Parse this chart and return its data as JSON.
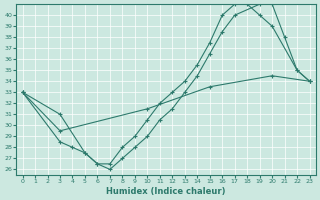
{
  "xlabel": "Humidex (Indice chaleur)",
  "bg_color": "#cce8e0",
  "line_color": "#2d7a6c",
  "xlim": [
    -0.5,
    23.5
  ],
  "ylim": [
    25.5,
    41.0
  ],
  "yticks": [
    26,
    27,
    28,
    29,
    30,
    31,
    32,
    33,
    34,
    35,
    36,
    37,
    38,
    39,
    40
  ],
  "xticks": [
    0,
    1,
    2,
    3,
    4,
    5,
    6,
    7,
    8,
    9,
    10,
    11,
    12,
    13,
    14,
    15,
    16,
    17,
    18,
    19,
    20,
    21,
    22,
    23
  ],
  "line1_x": [
    0,
    3,
    5,
    6,
    7,
    8,
    9,
    10,
    11,
    12,
    13,
    14,
    15,
    16,
    17,
    18,
    19,
    20,
    22,
    23
  ],
  "line1_y": [
    33,
    31,
    27.5,
    26.5,
    26.5,
    28,
    29,
    30.5,
    32,
    33,
    34,
    35.5,
    37.5,
    40,
    41,
    41,
    40,
    39,
    35,
    34
  ],
  "line2_x": [
    0,
    3,
    4,
    5,
    6,
    7,
    8,
    9,
    10,
    11,
    12,
    13,
    14,
    15,
    16,
    17,
    19,
    20,
    21,
    22,
    23
  ],
  "line2_y": [
    33,
    28.5,
    28,
    27.5,
    26.5,
    26,
    27,
    28,
    29,
    30.5,
    31.5,
    33,
    34.5,
    36.5,
    38.5,
    40,
    41,
    41,
    38,
    35,
    34
  ],
  "line3_x": [
    0,
    3,
    10,
    15,
    20,
    23
  ],
  "line3_y": [
    33,
    29.5,
    31.5,
    33.5,
    34.5,
    34
  ]
}
